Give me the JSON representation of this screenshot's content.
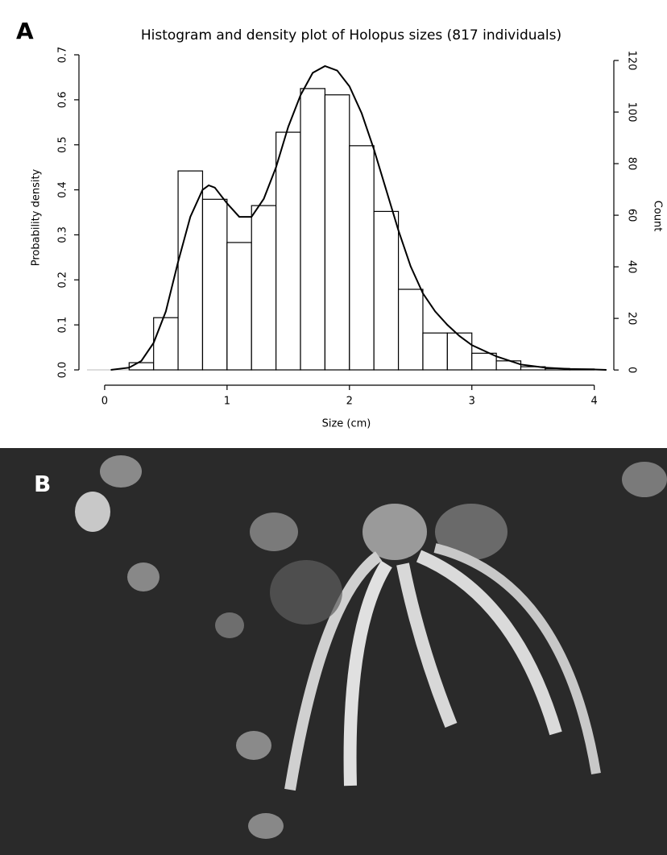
{
  "panel_labels": [
    "A",
    "B"
  ],
  "chart_data": {
    "type": "histogram",
    "title": "Histogram and density plot of Holopus sizes (817 individuals)",
    "xlabel": "Size (cm)",
    "ylabel": "Probability density",
    "y2label": "Count",
    "bins": [
      0.2,
      0.4,
      0.6,
      0.8,
      1.0,
      1.2,
      1.4,
      1.6,
      1.8,
      2.0,
      2.2,
      2.4,
      2.6,
      2.8,
      3.0,
      3.2,
      3.4,
      3.6,
      3.8,
      4.0
    ],
    "values": [
      0.016,
      0.116,
      0.442,
      0.379,
      0.283,
      0.365,
      0.528,
      0.625,
      0.611,
      0.498,
      0.352,
      0.179,
      0.082,
      0.082,
      0.037,
      0.02,
      0.007,
      0.003,
      0.002
    ],
    "density": {
      "x": [
        0.05,
        0.2,
        0.3,
        0.4,
        0.5,
        0.6,
        0.7,
        0.8,
        0.85,
        0.9,
        1.0,
        1.1,
        1.2,
        1.3,
        1.4,
        1.5,
        1.6,
        1.7,
        1.8,
        1.9,
        2.0,
        2.1,
        2.2,
        2.3,
        2.4,
        2.5,
        2.6,
        2.7,
        2.8,
        2.9,
        3.0,
        3.2,
        3.4,
        3.6,
        3.8,
        4.0,
        4.1
      ],
      "values": [
        0,
        0.005,
        0.02,
        0.06,
        0.13,
        0.24,
        0.34,
        0.4,
        0.41,
        0.405,
        0.37,
        0.34,
        0.34,
        0.38,
        0.45,
        0.54,
        0.61,
        0.66,
        0.675,
        0.665,
        0.63,
        0.57,
        0.49,
        0.4,
        0.31,
        0.23,
        0.17,
        0.13,
        0.1,
        0.075,
        0.055,
        0.03,
        0.012,
        0.005,
        0.002,
        0.001,
        0
      ]
    },
    "color": "#ffffff",
    "line_color": "#000000",
    "xlim": [
      -0.21,
      4.16
    ],
    "xticks": [
      0,
      1,
      2,
      3,
      4
    ],
    "ylim": [
      -0.034,
      0.7
    ],
    "yticks": [
      {
        "value": 0,
        "label": "0.0"
      },
      0.1,
      0.2,
      0.3,
      0.4,
      0.5,
      0.6,
      0.7
    ],
    "y2lim": [
      -5.9,
      122.2
    ],
    "y2ticks": [
      0,
      20,
      40,
      60,
      80,
      100,
      120
    ]
  }
}
